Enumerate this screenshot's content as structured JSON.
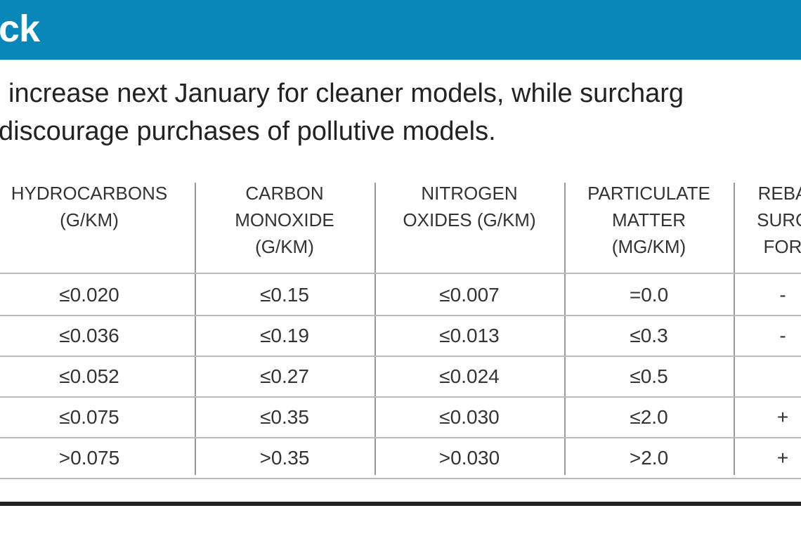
{
  "header": {
    "title": "ck"
  },
  "intro": {
    "lines": [
      "increase next January for cleaner models, while surcharg",
      "discourage purchases of pollutive models."
    ]
  },
  "table": {
    "columns": [
      [
        "HYDROCARBONS",
        "(G/KM)"
      ],
      [
        "CARBON",
        "MONOXIDE",
        "(G/KM)"
      ],
      [
        "NITROGEN",
        "OXIDES (G/KM)"
      ],
      [
        "PARTICULATE",
        "MATTER",
        "(MG/KM)"
      ],
      [
        "REBA",
        "SURC",
        "FOR"
      ]
    ],
    "rows": [
      [
        "≤0.020",
        "≤0.15",
        "≤0.007",
        "=0.0",
        "-"
      ],
      [
        "≤0.036",
        "≤0.19",
        "≤0.013",
        "≤0.3",
        "-"
      ],
      [
        "≤0.052",
        "≤0.27",
        "≤0.024",
        "≤0.5"
      ],
      [
        "≤0.075",
        "≤0.35",
        "≤0.030",
        "≤2.0",
        "+"
      ],
      [
        ">0.075",
        ">0.35",
        ">0.030",
        ">2.0",
        "+"
      ]
    ]
  }
}
